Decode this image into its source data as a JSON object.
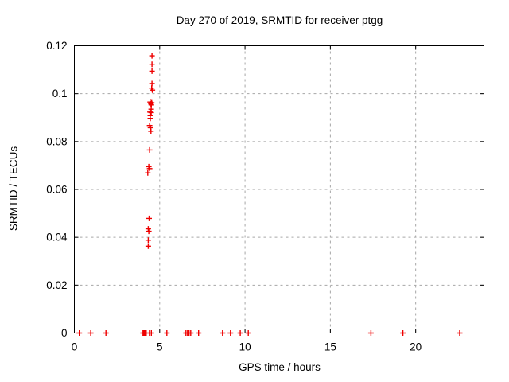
{
  "chart_data": {
    "type": "scatter",
    "title": "Day 270 of 2019, SRMTID for receiver ptgg",
    "xlabel": "GPS time / hours",
    "ylabel": "SRMTID / TECUs",
    "xlim": [
      0,
      24
    ],
    "ylim": [
      0,
      0.12
    ],
    "xticks": {
      "values": [
        0,
        5,
        10,
        15,
        20
      ],
      "labels": [
        "0",
        "5",
        "10",
        "15",
        "20"
      ]
    },
    "yticks": {
      "values": [
        0,
        0.02,
        0.04,
        0.06,
        0.08,
        0.1,
        0.12
      ],
      "labels": [
        "0",
        "0.02",
        "0.04",
        "0.06",
        "0.08",
        "0.1",
        "0.12"
      ]
    },
    "grid": true,
    "legend": "none",
    "marker": "plus",
    "marker_color": "#ee0000",
    "axis_color": "#000000",
    "grid_color": "#a6a6a6",
    "background_color": "#ffffff",
    "series": [
      {
        "name": "SRMTID",
        "points": [
          [
            4.55,
            0.1158
          ],
          [
            4.55,
            0.1123
          ],
          [
            4.55,
            0.1094
          ],
          [
            4.55,
            0.1042
          ],
          [
            4.53,
            0.1023
          ],
          [
            4.57,
            0.1015
          ],
          [
            4.44,
            0.0965
          ],
          [
            4.53,
            0.0962
          ],
          [
            4.49,
            0.0957
          ],
          [
            4.51,
            0.0953
          ],
          [
            4.5,
            0.0935
          ],
          [
            4.43,
            0.0923
          ],
          [
            4.5,
            0.0921
          ],
          [
            4.45,
            0.0908
          ],
          [
            4.45,
            0.0897
          ],
          [
            4.41,
            0.0867
          ],
          [
            4.46,
            0.0858
          ],
          [
            4.49,
            0.0843
          ],
          [
            4.41,
            0.0765
          ],
          [
            4.36,
            0.0695
          ],
          [
            4.41,
            0.0687
          ],
          [
            4.3,
            0.0669
          ],
          [
            4.38,
            0.0479
          ],
          [
            4.33,
            0.0435
          ],
          [
            4.36,
            0.0425
          ],
          [
            4.33,
            0.0388
          ],
          [
            4.33,
            0.0363
          ],
          [
            0.29,
            0
          ],
          [
            0.96,
            0
          ],
          [
            1.85,
            0
          ],
          [
            4.02,
            0
          ],
          [
            4.045,
            0
          ],
          [
            4.07,
            0
          ],
          [
            4.095,
            0
          ],
          [
            4.12,
            0
          ],
          [
            4.145,
            0
          ],
          [
            4.17,
            0
          ],
          [
            4.19,
            0
          ],
          [
            4.21,
            0
          ],
          [
            4.4,
            0
          ],
          [
            4.51,
            0
          ],
          [
            5.42,
            0
          ],
          [
            6.54,
            0
          ],
          [
            6.63,
            0
          ],
          [
            6.72,
            0
          ],
          [
            6.82,
            0
          ],
          [
            7.28,
            0
          ],
          [
            8.68,
            0
          ],
          [
            9.15,
            0
          ],
          [
            9.72,
            0
          ],
          [
            10.19,
            0
          ],
          [
            17.38,
            0
          ],
          [
            19.25,
            0
          ],
          [
            22.58,
            0
          ]
        ]
      }
    ]
  }
}
